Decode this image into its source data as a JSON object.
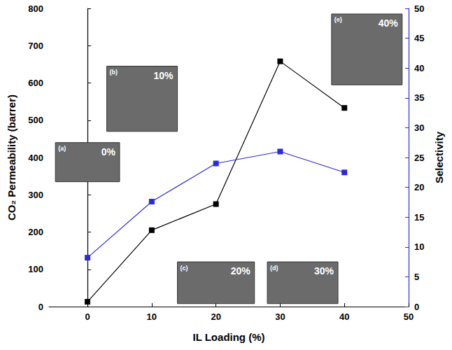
{
  "chart_data": {
    "type": "line",
    "x_label": "IL Loading (%)",
    "y_label": "CO₂ Permeability (barrer)",
    "y2_label": "Selectivity",
    "x": [
      0,
      10,
      20,
      30,
      40
    ],
    "xlim": [
      -6,
      50
    ],
    "xticks": [
      0,
      10,
      20,
      30,
      40,
      50
    ],
    "ylim": [
      0,
      800
    ],
    "yticks": [
      0,
      100,
      200,
      300,
      400,
      500,
      600,
      700,
      800
    ],
    "y2lim": [
      0,
      50
    ],
    "y2ticks": [
      0,
      5,
      10,
      15,
      20,
      25,
      30,
      35,
      40,
      45,
      50
    ],
    "grid": false,
    "series": [
      {
        "color": "#000000",
        "marker": "square",
        "line_style": "solid",
        "values": [
          13,
          205,
          275,
          658,
          533
        ]
      },
      {
        "color": "#2b2bdc",
        "marker": "square",
        "line_style": "solid",
        "axis": "y2",
        "values": [
          8.2,
          17.6,
          24,
          26,
          22.5
        ]
      }
    ],
    "annotations": [
      {
        "label": "(a)",
        "text": "0%"
      },
      {
        "label": "(b)",
        "text": "10%"
      },
      {
        "label": "(c)",
        "text": "20%"
      },
      {
        "label": "(d)",
        "text": "30%"
      },
      {
        "label": "(e)",
        "text": "40%"
      }
    ]
  }
}
